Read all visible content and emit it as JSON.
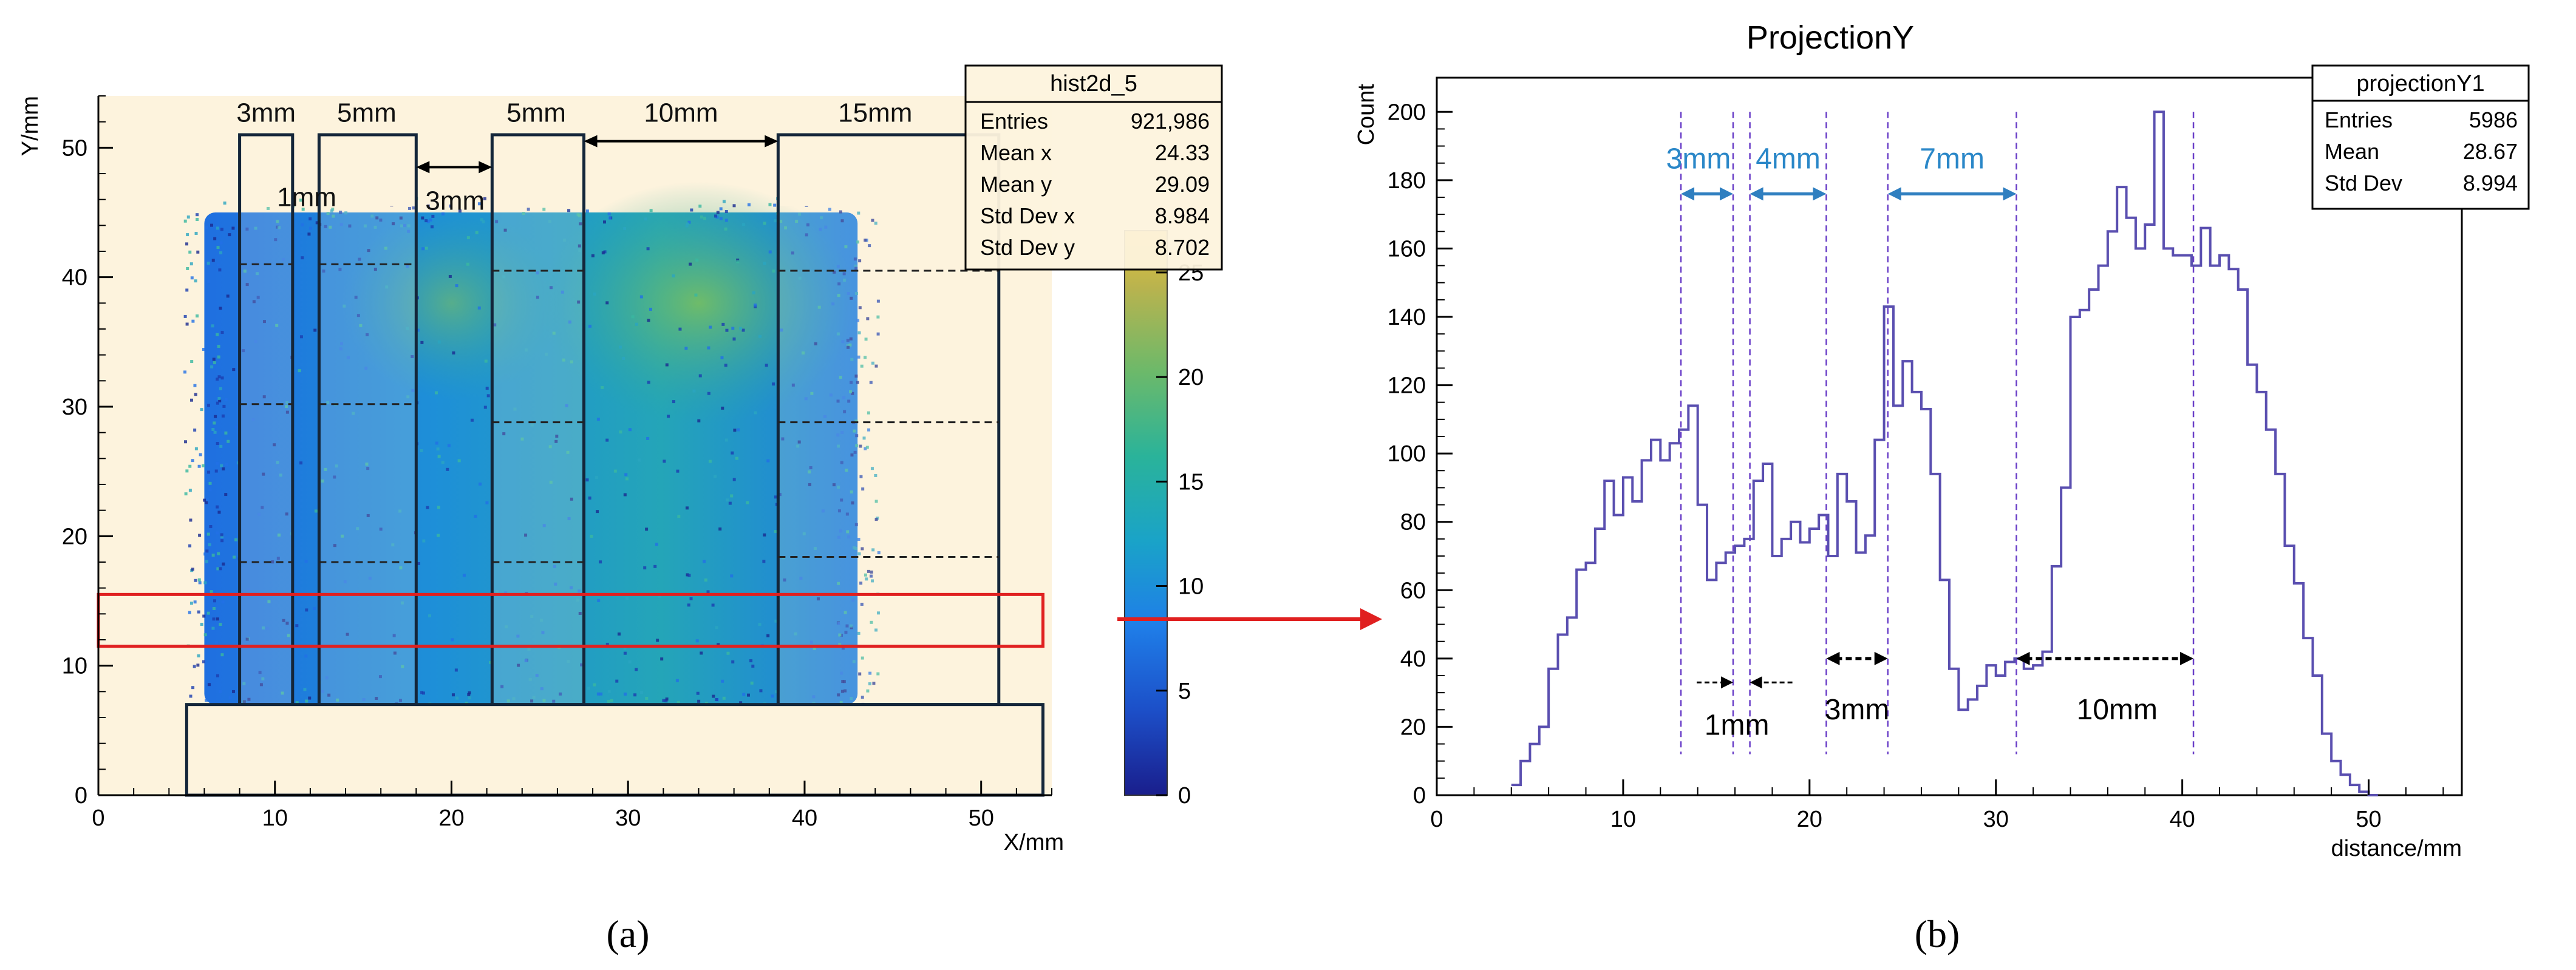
{
  "chart_data": [
    {
      "type": "heatmap",
      "panel_label": "(a)",
      "xlabel": "X/mm",
      "ylabel": "Y/mm",
      "xlim": [
        0,
        54
      ],
      "ylim": [
        0,
        54
      ],
      "x_ticks": [
        0,
        10,
        20,
        30,
        40,
        50
      ],
      "y_ticks": [
        0,
        10,
        20,
        30,
        40,
        50
      ],
      "colorbar": {
        "min": 0,
        "max": 27,
        "ticks": [
          0,
          5,
          10,
          15,
          20,
          25
        ]
      },
      "stats_box": {
        "title": "hist2d_5",
        "rows": [
          {
            "label": "Entries",
            "value": "921,986"
          },
          {
            "label": "Mean x",
            "value": "24.33"
          },
          {
            "label": "Mean y",
            "value": "29.09"
          },
          {
            "label": "Std Dev x",
            "value": "8.984"
          },
          {
            "label": "Std Dev y",
            "value": "8.702"
          }
        ]
      },
      "beam_region": {
        "x": [
          6,
          43
        ],
        "y": [
          7,
          45
        ]
      },
      "slit_rects": [
        {
          "name": "3mm",
          "x0": 8,
          "x1": 11
        },
        {
          "name": "5mm",
          "x0": 12.5,
          "x1": 18
        },
        {
          "name": "5mm",
          "x0": 22.3,
          "x1": 27.5
        },
        {
          "name": "15mm",
          "x0": 38.5,
          "x1": 51
        }
      ],
      "slit_y_range": [
        7,
        51
      ],
      "bottom_rect": {
        "x0": 5,
        "x1": 53.5,
        "y0": 0,
        "y1": 7
      },
      "projection_band": {
        "x0": 0,
        "x1": 53.5,
        "y0": 11.5,
        "y1": 15.5
      },
      "dashed_levels": [
        {
          "x0": 8,
          "x1": 11,
          "y": 41
        },
        {
          "x0": 8,
          "x1": 11,
          "y": 30.2
        },
        {
          "x0": 8,
          "x1": 11,
          "y": 18
        },
        {
          "x0": 12.5,
          "x1": 18,
          "y": 41
        },
        {
          "x0": 12.5,
          "x1": 18,
          "y": 30.2
        },
        {
          "x0": 12.5,
          "x1": 18,
          "y": 18
        },
        {
          "x0": 22.3,
          "x1": 27.5,
          "y": 40.5
        },
        {
          "x0": 22.3,
          "x1": 27.5,
          "y": 28.8
        },
        {
          "x0": 22.3,
          "x1": 27.5,
          "y": 18
        },
        {
          "x0": 38.5,
          "x1": 51,
          "y": 40.5
        },
        {
          "x0": 38.5,
          "x1": 51,
          "y": 28.8
        },
        {
          "x0": 38.5,
          "x1": 51,
          "y": 18.4
        }
      ],
      "annotations": [
        {
          "text": "3mm",
          "x": 9.5,
          "y": 52
        },
        {
          "text": "5mm",
          "x": 15.2,
          "y": 52
        },
        {
          "text": "5mm",
          "x": 24.8,
          "y": 52
        },
        {
          "text": "10mm",
          "x": 33,
          "y": 52
        },
        {
          "text": "15mm",
          "x": 44,
          "y": 52
        },
        {
          "text": "1mm",
          "x": 11.8,
          "y": 45.5
        },
        {
          "text": "3mm",
          "x": 20.2,
          "y": 45.2
        }
      ],
      "arrows": [
        {
          "x0": 18,
          "x1": 22.3,
          "y": 48.5
        },
        {
          "x0": 27.5,
          "x1": 38.5,
          "y": 50.5
        }
      ]
    },
    {
      "type": "line",
      "panel_label": "(b)",
      "title": "ProjectionY",
      "xlabel": "distance/mm",
      "ylabel": "Count",
      "xlim": [
        0,
        55
      ],
      "ylim": [
        0,
        210
      ],
      "x_ticks": [
        0,
        10,
        20,
        30,
        40,
        50
      ],
      "y_ticks": [
        0,
        20,
        40,
        60,
        80,
        100,
        120,
        140,
        160,
        180,
        200
      ],
      "bin_width": 0.5,
      "x_start": 4,
      "values": [
        3,
        10,
        15,
        20,
        37,
        47,
        52,
        66,
        68,
        78,
        92,
        82,
        93,
        86,
        98,
        104,
        98,
        103,
        107,
        114,
        85,
        63,
        68,
        71,
        73,
        75,
        92,
        97,
        70,
        75,
        80,
        74,
        78,
        82,
        70,
        94,
        86,
        71,
        76,
        104,
        143,
        114,
        127,
        118,
        113,
        94,
        63,
        37,
        25,
        28,
        32,
        38,
        35,
        39,
        40,
        37,
        38,
        42,
        67,
        90,
        140,
        142,
        148,
        155,
        165,
        178,
        169,
        160,
        167,
        200,
        160,
        158,
        158,
        155,
        166,
        155,
        158,
        154,
        148,
        126,
        118,
        107,
        94,
        73,
        62,
        46,
        35,
        18,
        10,
        6,
        3,
        1,
        0
      ],
      "stats_box": {
        "title": "projectionY1",
        "rows": [
          {
            "label": "Entries",
            "value": "5986"
          },
          {
            "label": "Mean",
            "value": "28.67"
          },
          {
            "label": "Std Dev",
            "value": "8.994"
          }
        ]
      },
      "vlines": [
        13.1,
        15.9,
        16.8,
        20.9,
        24.2,
        31.1,
        40.6
      ],
      "spans_blue": [
        {
          "text": "3mm",
          "x0": 13.1,
          "x1": 15.9,
          "y": 176
        },
        {
          "text": "4mm",
          "x0": 16.8,
          "x1": 20.9,
          "y": 176
        },
        {
          "text": "7mm",
          "x0": 24.2,
          "x1": 31.1,
          "y": 176
        }
      ],
      "spans_black": [
        {
          "text": "1mm",
          "x0": 15.9,
          "x1": 16.8,
          "y": 33
        },
        {
          "text": "3mm",
          "x0": 20.9,
          "x1": 24.2,
          "y": 40
        },
        {
          "text": "10mm",
          "x0": 31.1,
          "x1": 40.6,
          "y": 40
        }
      ]
    }
  ]
}
